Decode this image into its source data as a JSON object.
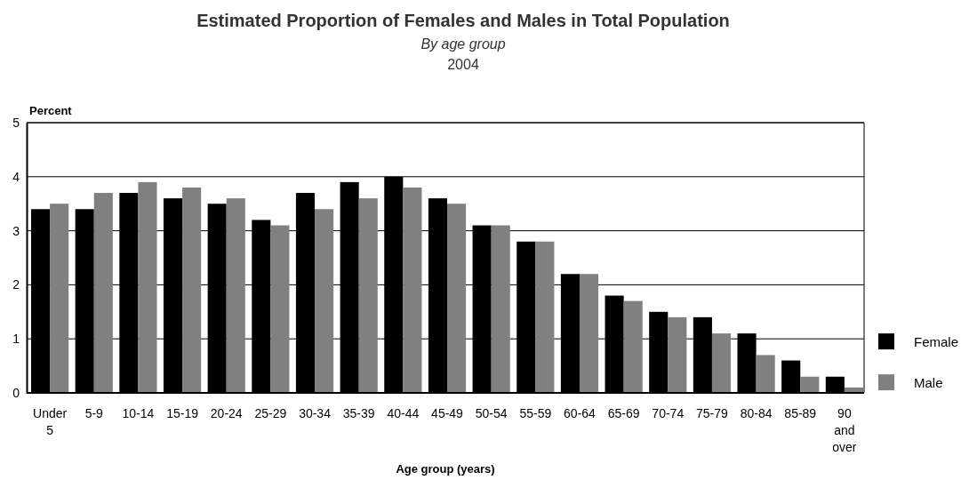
{
  "chart_data": {
    "type": "bar",
    "title": "Estimated Proportion of Females and Males in Total Population",
    "subtitle": "By age group",
    "annotations": [
      "2004"
    ],
    "xlabel": "Age group (years)",
    "ylabel": "Percent",
    "categories": [
      "Under 5",
      "5-9",
      "10-14",
      "15-19",
      "20-24",
      "25-29",
      "30-34",
      "35-39",
      "40-44",
      "45-49",
      "50-54",
      "55-59",
      "60-64",
      "65-69",
      "70-74",
      "75-79",
      "80-84",
      "85-89",
      "90 and over"
    ],
    "series": [
      {
        "name": "Female",
        "color": "#000000",
        "values": [
          3.4,
          3.4,
          3.7,
          3.6,
          3.5,
          3.2,
          3.7,
          3.9,
          4.0,
          3.6,
          3.1,
          2.8,
          2.2,
          1.8,
          1.5,
          1.4,
          1.1,
          0.6,
          0.3
        ]
      },
      {
        "name": "Male",
        "color": "#808080",
        "values": [
          3.5,
          3.7,
          3.9,
          3.8,
          3.6,
          3.1,
          3.4,
          3.6,
          3.8,
          3.5,
          3.1,
          2.8,
          2.2,
          1.7,
          1.4,
          1.1,
          0.7,
          0.3,
          0.1
        ]
      }
    ],
    "ylim": [
      0,
      5
    ],
    "yticks": [
      0,
      1,
      2,
      3,
      4,
      5
    ],
    "grid": "y",
    "legend": "right"
  }
}
